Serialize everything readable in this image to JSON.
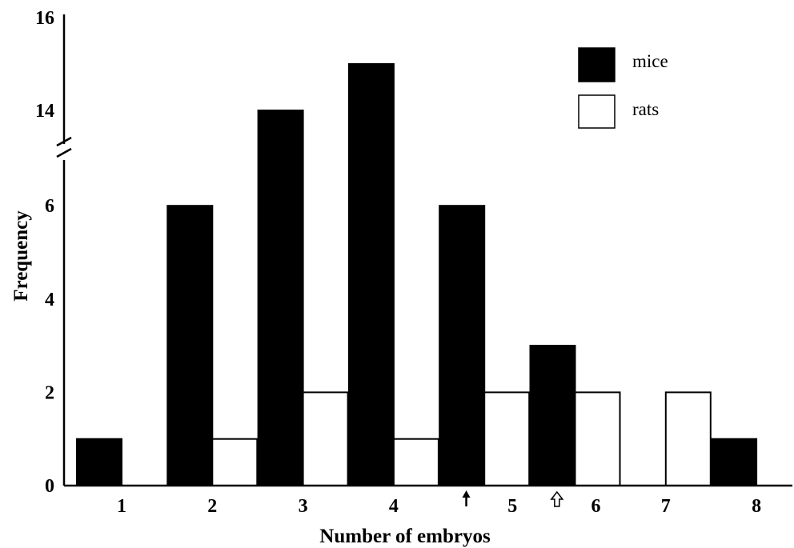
{
  "chart_data": {
    "type": "bar",
    "xlabel": "Number of embryos",
    "ylabel": "Frequency",
    "categories": [
      "1",
      "2",
      "3",
      "4",
      "5",
      "6",
      "7",
      "8"
    ],
    "series": [
      {
        "name": "mice",
        "values": [
          1,
          6,
          14,
          15,
          6,
          3,
          0,
          1
        ],
        "color": "#000000"
      },
      {
        "name": "rats",
        "values": [
          0,
          1,
          2,
          1,
          2,
          2,
          2,
          0
        ],
        "color": "#ffffff"
      }
    ],
    "y_ticks_lower": [
      "0",
      "2",
      "4",
      "6"
    ],
    "y_ticks_upper": [
      "14",
      "16"
    ],
    "y_axis_break": {
      "lower_segment": [
        0,
        7
      ],
      "upper_segment": [
        13,
        16
      ]
    },
    "legend_placement": "top-right",
    "markers": [
      {
        "type": "filled-arrow",
        "series": "mice",
        "x": 4.8
      },
      {
        "type": "hollow-arrow",
        "series": "rats",
        "x": 5.8
      }
    ],
    "grid": false
  }
}
